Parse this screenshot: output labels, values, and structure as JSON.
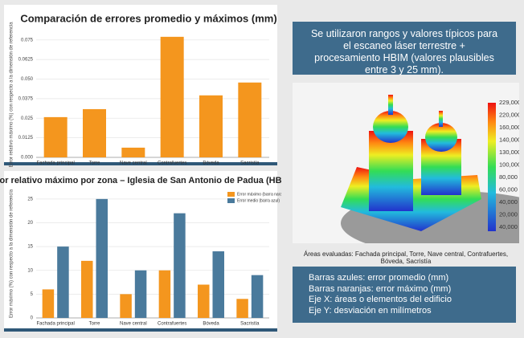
{
  "chart_data": [
    {
      "type": "bar",
      "title": "Comparación de errores promedio y máximos (mm)",
      "y_label": "Error relativo máximo (%) con respecto a la dimensión de referencia",
      "categories": [
        "Fachada principal",
        "Torre",
        "Nave central",
        "Contrafuertes",
        "Bóveda",
        "Sacristía"
      ],
      "values": [
        0.0257,
        0.0308,
        0.0062,
        0.077,
        0.0396,
        0.0478
      ],
      "color": "#f4961e",
      "ylim": [
        0,
        0.08
      ],
      "yticks": [
        {
          "value": 0,
          "label": "0.000"
        },
        {
          "value": 0.0125,
          "label": "0.0125"
        },
        {
          "value": 0.025,
          "label": "0.025"
        },
        {
          "value": 0.0375,
          "label": "0.0375"
        },
        {
          "value": 0.05,
          "label": "0.050"
        },
        {
          "value": 0.0625,
          "label": "0.0625"
        },
        {
          "value": 0.075,
          "label": "0.075"
        }
      ],
      "grid": true
    },
    {
      "type": "grouped_bar",
      "title": "Error relativo máximo por zona – Iglesia de San Antonio de Padua (HBIM)",
      "y_label": "Error máximo (%) con respecto a la dimensión de referencia",
      "categories": [
        "Fachada principal",
        "Torre",
        "Nave central",
        "Contrafuertes",
        "Bóveda",
        "Sacristía"
      ],
      "series": [
        {
          "name": "Error máximo (barra naranja)",
          "color": "#f4961e",
          "values": [
            6,
            12,
            5,
            10,
            7,
            4
          ]
        },
        {
          "name": "Error medio (barra azul)",
          "color": "#4a7a9c",
          "values": [
            15,
            25,
            10,
            22,
            14,
            9
          ]
        }
      ],
      "ylim": [
        0,
        27
      ],
      "yticks": [
        0,
        5,
        10,
        15,
        20,
        25
      ],
      "grid": true,
      "legend": "upper right"
    }
  ],
  "note_box": "Se utilizaron rangos y valores típicos para el escaneo láser terrestre + procesamiento HBIM (valores plausibles entre 3 y 25 mm).",
  "colorbar": [
    "229,000",
    "220,000",
    "160,000",
    "140,000",
    "130,000",
    "100,000",
    "80,000",
    "60,000",
    "40,000",
    "20,000",
    "40,000"
  ],
  "caption": "Áreas evaluadas: Fachada principal, Torre, Nave central, Contrafuertes, Bóveda, Sacristía",
  "legend_box": [
    "Barras azules: error promedio (mm)",
    "Barras naranjas: error máximo (mm)",
    "Eje X: áreas o elementos del edificio",
    "Eje Y: desviación en milímetros"
  ]
}
